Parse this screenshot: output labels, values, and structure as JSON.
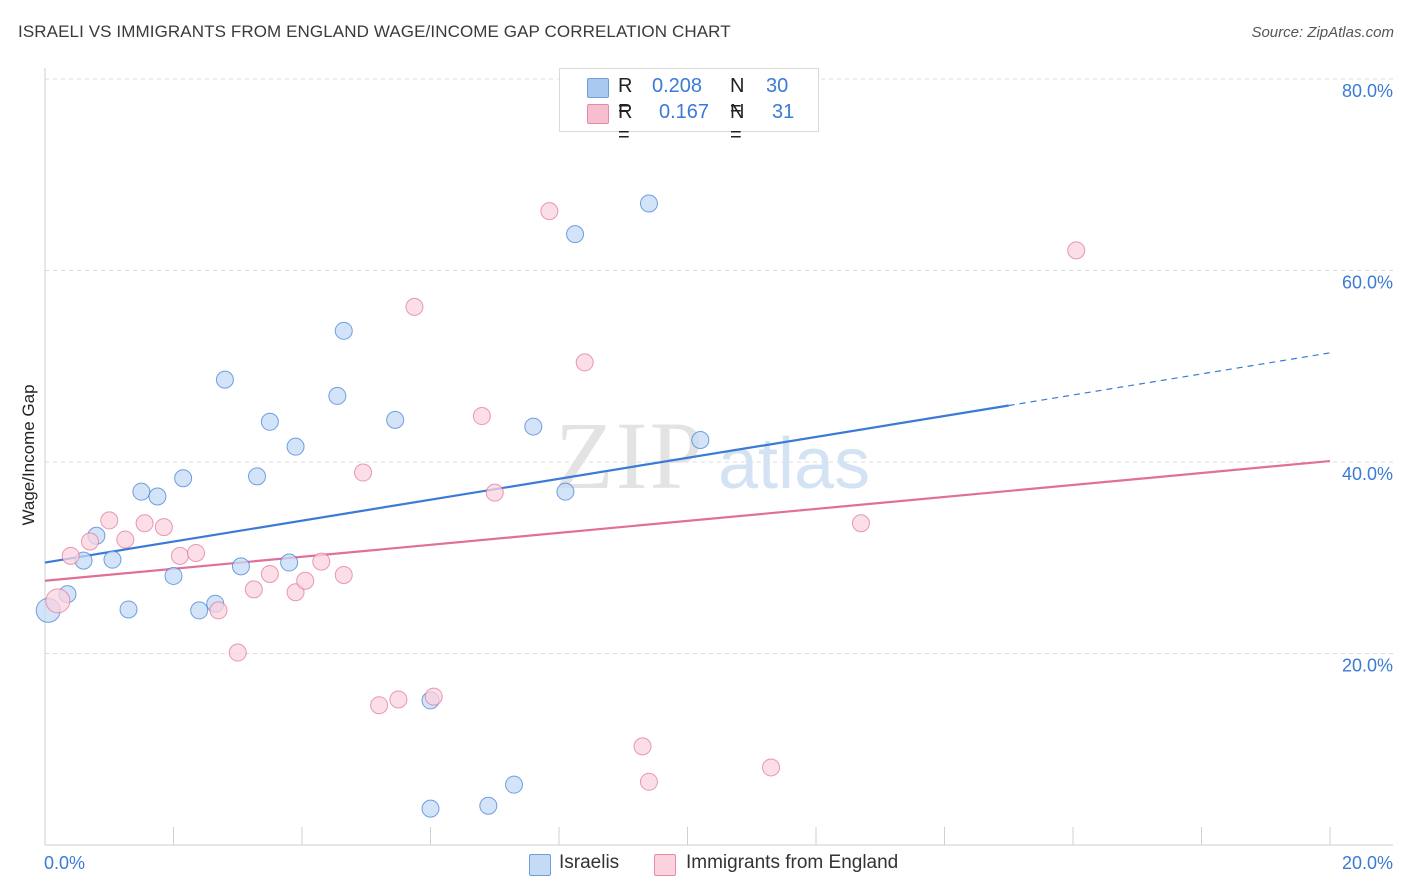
{
  "header": {
    "title": "ISRAELI VS IMMIGRANTS FROM ENGLAND WAGE/INCOME GAP CORRELATION CHART",
    "source": "Source: ZipAtlas.com"
  },
  "watermark": {
    "zip": "ZIP",
    "atlas": "atlas"
  },
  "legend_top": [
    {
      "r_label": "R =",
      "r_value": "0.208",
      "n_label": "N =",
      "n_value": "30",
      "color": "#a8c8f0",
      "border": "#6f9fd8"
    },
    {
      "r_label": "R =",
      "r_value": "0.167",
      "n_label": "N =",
      "n_value": "31",
      "color": "#f6bfd0",
      "border": "#e68aa8"
    }
  ],
  "legend_bottom": [
    {
      "label": "Israelis",
      "color": "#c5dbf5",
      "border": "#6f9fd8"
    },
    {
      "label": "Immigrants from England",
      "color": "#fbd3df",
      "border": "#e68aa8"
    }
  ],
  "chart_data": {
    "type": "scatter",
    "title": "ISRAELI VS IMMIGRANTS FROM ENGLAND WAGE/INCOME GAP CORRELATION CHART",
    "xlabel": "",
    "ylabel": "Wage/Income Gap",
    "xlim": [
      0,
      20
    ],
    "ylim": [
      0,
      80
    ],
    "x_tick_labels": [
      "0.0%",
      "20.0%"
    ],
    "y_tick_labels": [
      "20.0%",
      "40.0%",
      "60.0%",
      "80.0%"
    ],
    "y_ticks": [
      20,
      40,
      60,
      80
    ],
    "grid": true,
    "series": [
      {
        "name": "Israelis",
        "color": "#3a7bd5",
        "fill": "#c5dbf5",
        "r": 0.208,
        "n": 30,
        "trend": {
          "x0": 0,
          "y0": 29.5,
          "x1": 15.0,
          "y1": 45.9,
          "dash_to_x": 20,
          "dash_to_y": 51.4
        },
        "points": [
          [
            0.05,
            24.5
          ],
          [
            0.35,
            26.2
          ],
          [
            0.6,
            29.7
          ],
          [
            0.8,
            32.3
          ],
          [
            1.05,
            29.8
          ],
          [
            1.3,
            24.6
          ],
          [
            1.5,
            36.9
          ],
          [
            1.75,
            36.4
          ],
          [
            2.0,
            28.1
          ],
          [
            2.15,
            38.3
          ],
          [
            2.4,
            24.5
          ],
          [
            2.65,
            25.2
          ],
          [
            2.8,
            48.6
          ],
          [
            3.05,
            29.1
          ],
          [
            3.3,
            38.5
          ],
          [
            3.5,
            44.2
          ],
          [
            3.8,
            29.5
          ],
          [
            3.9,
            41.6
          ],
          [
            4.55,
            46.9
          ],
          [
            4.65,
            53.7
          ],
          [
            5.45,
            44.4
          ],
          [
            6.0,
            15.1
          ],
          [
            6.0,
            3.8
          ],
          [
            6.9,
            4.1
          ],
          [
            7.3,
            6.3
          ],
          [
            7.6,
            43.7
          ],
          [
            8.1,
            36.9
          ],
          [
            8.25,
            63.8
          ],
          [
            9.4,
            67.0
          ],
          [
            10.2,
            42.3
          ]
        ]
      },
      {
        "name": "Immigrants from England",
        "color": "#e0709a",
        "fill": "#fbd3df",
        "r": 0.167,
        "n": 31,
        "trend": {
          "x0": 0,
          "y0": 27.6,
          "x1": 20,
          "y1": 40.1
        },
        "points": [
          [
            0.2,
            25.5
          ],
          [
            0.4,
            30.2
          ],
          [
            0.7,
            31.7
          ],
          [
            1.0,
            33.9
          ],
          [
            1.25,
            31.9
          ],
          [
            1.55,
            33.6
          ],
          [
            1.85,
            33.2
          ],
          [
            2.1,
            30.2
          ],
          [
            2.35,
            30.5
          ],
          [
            2.7,
            24.5
          ],
          [
            3.0,
            20.1
          ],
          [
            3.25,
            26.7
          ],
          [
            3.5,
            28.3
          ],
          [
            3.9,
            26.4
          ],
          [
            4.05,
            27.6
          ],
          [
            4.3,
            29.6
          ],
          [
            4.65,
            28.2
          ],
          [
            4.95,
            38.9
          ],
          [
            5.2,
            14.6
          ],
          [
            5.5,
            15.2
          ],
          [
            5.75,
            56.2
          ],
          [
            6.05,
            15.5
          ],
          [
            6.8,
            44.8
          ],
          [
            7.0,
            36.8
          ],
          [
            7.85,
            66.2
          ],
          [
            8.4,
            50.4
          ],
          [
            9.3,
            10.3
          ],
          [
            9.4,
            6.6
          ],
          [
            11.3,
            8.1
          ],
          [
            12.7,
            33.6
          ],
          [
            16.05,
            62.1
          ]
        ]
      }
    ]
  }
}
